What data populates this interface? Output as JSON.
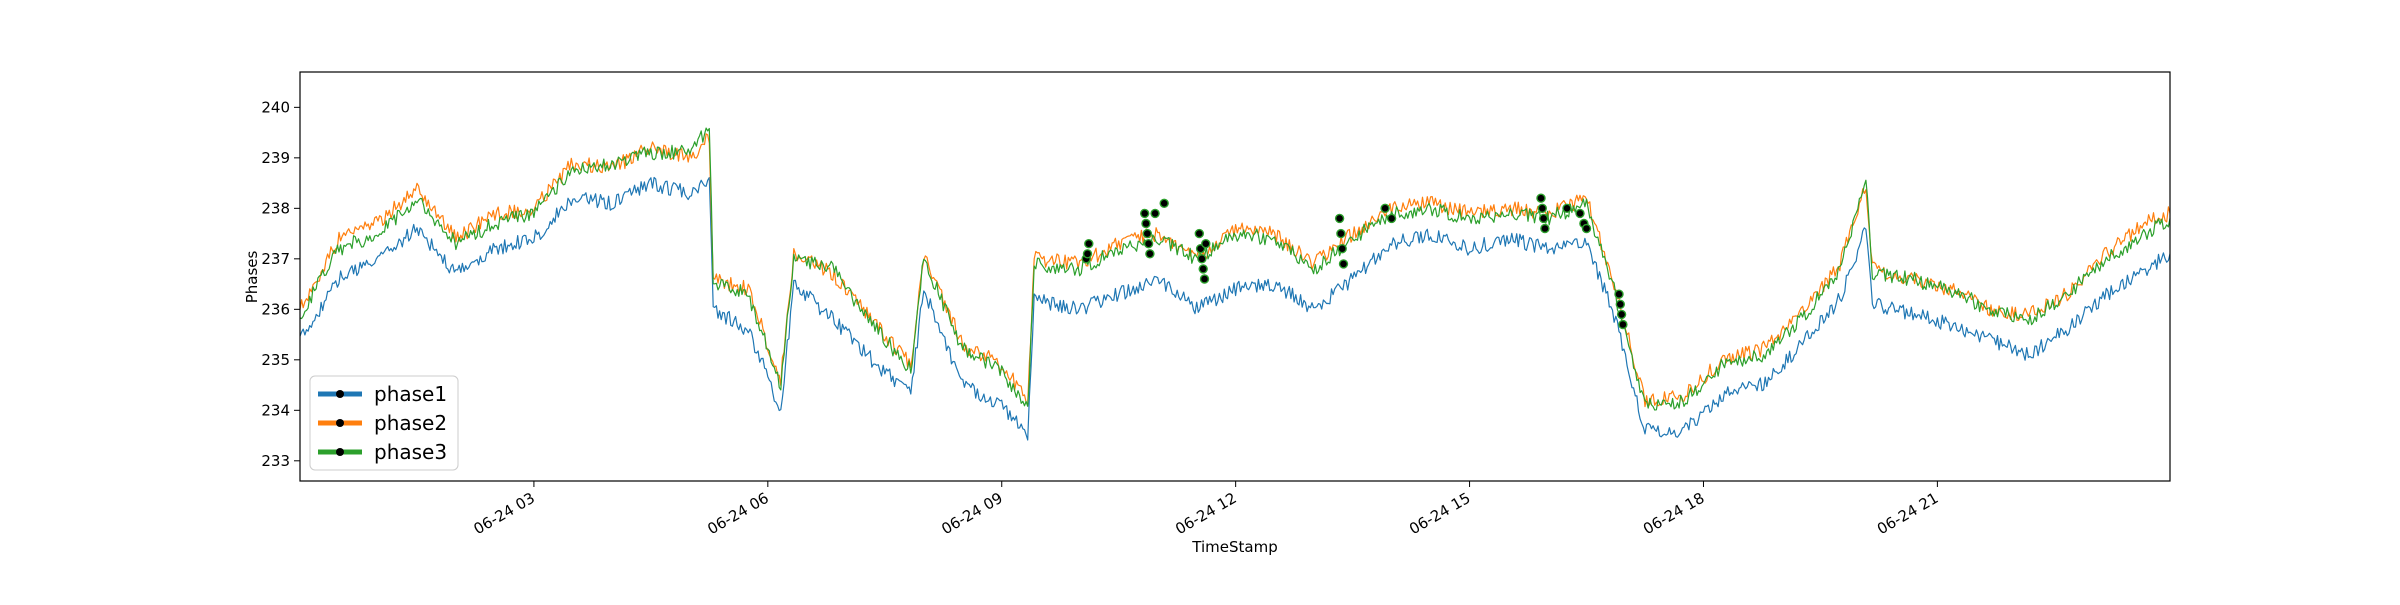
{
  "chart_data": {
    "type": "line",
    "title": "",
    "xlabel": "TimeStamp",
    "ylabel": "Phases",
    "x_domain": [
      "2024-06-24T00:00",
      "2024-06-24T23:59"
    ],
    "ylim": [
      232.6,
      240.7
    ],
    "x_ticks": [
      {
        "x": "2024-06-24T03:00",
        "label": "06-24 03"
      },
      {
        "x": "2024-06-24T06:00",
        "label": "06-24 06"
      },
      {
        "x": "2024-06-24T09:00",
        "label": "06-24 09"
      },
      {
        "x": "2024-06-24T12:00",
        "label": "06-24 12"
      },
      {
        "x": "2024-06-24T15:00",
        "label": "06-24 15"
      },
      {
        "x": "2024-06-24T18:00",
        "label": "06-24 18"
      },
      {
        "x": "2024-06-24T21:00",
        "label": "06-24 21"
      }
    ],
    "y_ticks": [
      233,
      234,
      235,
      236,
      237,
      238,
      239,
      240
    ],
    "grid": false,
    "legend": {
      "placement": "bottom-left",
      "marker": "black dot on colored line"
    },
    "series": [
      {
        "name": "phase1",
        "color": "#1f77b4",
        "points": [
          [
            "2024-06-24T00:00",
            235.4
          ],
          [
            "2024-06-24T00:30",
            236.6
          ],
          [
            "2024-06-24T01:00",
            237.0
          ],
          [
            "2024-06-24T01:30",
            237.6
          ],
          [
            "2024-06-24T02:00",
            236.7
          ],
          [
            "2024-06-24T02:30",
            237.2
          ],
          [
            "2024-06-24T03:00",
            237.4
          ],
          [
            "2024-06-24T03:30",
            238.2
          ],
          [
            "2024-06-24T04:00",
            238.1
          ],
          [
            "2024-06-24T04:30",
            238.5
          ],
          [
            "2024-06-24T05:00",
            238.3
          ],
          [
            "2024-06-24T05:15",
            238.6
          ],
          [
            "2024-06-24T05:18",
            236.0
          ],
          [
            "2024-06-24T05:45",
            235.6
          ],
          [
            "2024-06-24T06:10",
            234.0
          ],
          [
            "2024-06-24T06:20",
            236.5
          ],
          [
            "2024-06-24T06:50",
            235.8
          ],
          [
            "2024-06-24T07:20",
            235.0
          ],
          [
            "2024-06-24T07:50",
            234.3
          ],
          [
            "2024-06-24T08:00",
            236.4
          ],
          [
            "2024-06-24T08:30",
            234.5
          ],
          [
            "2024-06-24T09:00",
            234.1
          ],
          [
            "2024-06-24T09:20",
            233.5
          ],
          [
            "2024-06-24T09:25",
            236.2
          ],
          [
            "2024-06-24T10:00",
            236.0
          ],
          [
            "2024-06-24T10:30",
            236.3
          ],
          [
            "2024-06-24T11:00",
            236.6
          ],
          [
            "2024-06-24T11:30",
            236.0
          ],
          [
            "2024-06-24T12:00",
            236.4
          ],
          [
            "2024-06-24T12:30",
            236.5
          ],
          [
            "2024-06-24T13:00",
            236.0
          ],
          [
            "2024-06-24T13:30",
            236.6
          ],
          [
            "2024-06-24T14:00",
            237.3
          ],
          [
            "2024-06-24T14:30",
            237.5
          ],
          [
            "2024-06-24T15:00",
            237.2
          ],
          [
            "2024-06-24T15:30",
            237.4
          ],
          [
            "2024-06-24T16:00",
            237.2
          ],
          [
            "2024-06-24T16:30",
            237.3
          ],
          [
            "2024-06-24T16:50",
            236.0
          ],
          [
            "2024-06-24T17:15",
            233.6
          ],
          [
            "2024-06-24T17:45",
            233.6
          ],
          [
            "2024-06-24T18:15",
            234.3
          ],
          [
            "2024-06-24T18:45",
            234.5
          ],
          [
            "2024-06-24T19:15",
            235.3
          ],
          [
            "2024-06-24T19:45",
            236.2
          ],
          [
            "2024-06-24T20:05",
            237.6
          ],
          [
            "2024-06-24T20:10",
            236.1
          ],
          [
            "2024-06-24T20:40",
            235.9
          ],
          [
            "2024-06-24T21:10",
            235.7
          ],
          [
            "2024-06-24T21:40",
            235.4
          ],
          [
            "2024-06-24T22:10",
            235.1
          ],
          [
            "2024-06-24T22:40",
            235.6
          ],
          [
            "2024-06-24T23:10",
            236.3
          ],
          [
            "2024-06-24T23:40",
            236.8
          ],
          [
            "2024-06-24T23:59",
            237.1
          ]
        ]
      },
      {
        "name": "phase2",
        "color": "#ff7f0e",
        "points": [
          [
            "2024-06-24T00:00",
            236.0
          ],
          [
            "2024-06-24T00:30",
            237.4
          ],
          [
            "2024-06-24T01:00",
            237.7
          ],
          [
            "2024-06-24T01:30",
            238.4
          ],
          [
            "2024-06-24T02:00",
            237.4
          ],
          [
            "2024-06-24T02:30",
            237.9
          ],
          [
            "2024-06-24T03:00",
            238.0
          ],
          [
            "2024-06-24T03:30",
            238.9
          ],
          [
            "2024-06-24T04:00",
            238.8
          ],
          [
            "2024-06-24T04:30",
            239.2
          ],
          [
            "2024-06-24T05:00",
            239.0
          ],
          [
            "2024-06-24T05:15",
            239.4
          ],
          [
            "2024-06-24T05:18",
            236.6
          ],
          [
            "2024-06-24T05:45",
            236.4
          ],
          [
            "2024-06-24T06:10",
            234.6
          ],
          [
            "2024-06-24T06:20",
            237.1
          ],
          [
            "2024-06-24T06:50",
            236.7
          ],
          [
            "2024-06-24T07:20",
            235.8
          ],
          [
            "2024-06-24T07:50",
            234.9
          ],
          [
            "2024-06-24T08:00",
            237.1
          ],
          [
            "2024-06-24T08:30",
            235.3
          ],
          [
            "2024-06-24T09:00",
            234.9
          ],
          [
            "2024-06-24T09:20",
            234.2
          ],
          [
            "2024-06-24T09:25",
            237.0
          ],
          [
            "2024-06-24T10:00",
            236.9
          ],
          [
            "2024-06-24T10:30",
            237.3
          ],
          [
            "2024-06-24T11:00",
            237.5
          ],
          [
            "2024-06-24T11:30",
            237.0
          ],
          [
            "2024-06-24T12:00",
            237.6
          ],
          [
            "2024-06-24T12:30",
            237.5
          ],
          [
            "2024-06-24T13:00",
            236.9
          ],
          [
            "2024-06-24T13:30",
            237.5
          ],
          [
            "2024-06-24T14:00",
            238.0
          ],
          [
            "2024-06-24T14:30",
            238.1
          ],
          [
            "2024-06-24T15:00",
            237.9
          ],
          [
            "2024-06-24T15:30",
            238.0
          ],
          [
            "2024-06-24T16:00",
            237.9
          ],
          [
            "2024-06-24T16:30",
            238.2
          ],
          [
            "2024-06-24T16:50",
            236.6
          ],
          [
            "2024-06-24T17:15",
            234.2
          ],
          [
            "2024-06-24T17:45",
            234.3
          ],
          [
            "2024-06-24T18:15",
            235.0
          ],
          [
            "2024-06-24T18:45",
            235.2
          ],
          [
            "2024-06-24T19:15",
            235.9
          ],
          [
            "2024-06-24T19:45",
            236.9
          ],
          [
            "2024-06-24T20:05",
            238.5
          ],
          [
            "2024-06-24T20:10",
            236.8
          ],
          [
            "2024-06-24T20:40",
            236.6
          ],
          [
            "2024-06-24T21:10",
            236.4
          ],
          [
            "2024-06-24T21:40",
            236.0
          ],
          [
            "2024-06-24T22:10",
            235.9
          ],
          [
            "2024-06-24T22:40",
            236.3
          ],
          [
            "2024-06-24T23:10",
            237.1
          ],
          [
            "2024-06-24T23:40",
            237.7
          ],
          [
            "2024-06-24T23:59",
            237.9
          ]
        ]
      },
      {
        "name": "phase3",
        "color": "#2ca02c",
        "points": [
          [
            "2024-06-24T00:00",
            235.9
          ],
          [
            "2024-06-24T00:30",
            237.2
          ],
          [
            "2024-06-24T01:00",
            237.5
          ],
          [
            "2024-06-24T01:30",
            238.2
          ],
          [
            "2024-06-24T02:00",
            237.3
          ],
          [
            "2024-06-24T02:30",
            237.7
          ],
          [
            "2024-06-24T03:00",
            237.9
          ],
          [
            "2024-06-24T03:30",
            238.8
          ],
          [
            "2024-06-24T04:00",
            238.9
          ],
          [
            "2024-06-24T04:30",
            239.1
          ],
          [
            "2024-06-24T05:00",
            239.1
          ],
          [
            "2024-06-24T05:15",
            239.6
          ],
          [
            "2024-06-24T05:18",
            236.5
          ],
          [
            "2024-06-24T05:45",
            236.3
          ],
          [
            "2024-06-24T06:10",
            234.5
          ],
          [
            "2024-06-24T06:20",
            237.0
          ],
          [
            "2024-06-24T06:50",
            236.8
          ],
          [
            "2024-06-24T07:20",
            235.7
          ],
          [
            "2024-06-24T07:50",
            234.8
          ],
          [
            "2024-06-24T08:00",
            237.0
          ],
          [
            "2024-06-24T08:30",
            235.2
          ],
          [
            "2024-06-24T09:00",
            234.8
          ],
          [
            "2024-06-24T09:20",
            234.0
          ],
          [
            "2024-06-24T09:25",
            236.9
          ],
          [
            "2024-06-24T10:00",
            236.8
          ],
          [
            "2024-06-24T10:30",
            237.2
          ],
          [
            "2024-06-24T11:00",
            237.4
          ],
          [
            "2024-06-24T11:30",
            237.0
          ],
          [
            "2024-06-24T12:00",
            237.5
          ],
          [
            "2024-06-24T12:30",
            237.4
          ],
          [
            "2024-06-24T13:00",
            236.8
          ],
          [
            "2024-06-24T13:30",
            237.4
          ],
          [
            "2024-06-24T14:00",
            237.9
          ],
          [
            "2024-06-24T14:30",
            238.0
          ],
          [
            "2024-06-24T15:00",
            237.8
          ],
          [
            "2024-06-24T15:30",
            237.9
          ],
          [
            "2024-06-24T16:00",
            237.8
          ],
          [
            "2024-06-24T16:30",
            238.1
          ],
          [
            "2024-06-24T16:50",
            236.5
          ],
          [
            "2024-06-24T17:15",
            234.1
          ],
          [
            "2024-06-24T17:45",
            234.2
          ],
          [
            "2024-06-24T18:15",
            234.9
          ],
          [
            "2024-06-24T18:45",
            235.1
          ],
          [
            "2024-06-24T19:15",
            235.8
          ],
          [
            "2024-06-24T19:45",
            236.8
          ],
          [
            "2024-06-24T20:05",
            238.6
          ],
          [
            "2024-06-24T20:10",
            236.7
          ],
          [
            "2024-06-24T20:40",
            236.6
          ],
          [
            "2024-06-24T21:10",
            236.4
          ],
          [
            "2024-06-24T21:40",
            236.0
          ],
          [
            "2024-06-24T22:10",
            235.8
          ],
          [
            "2024-06-24T22:40",
            236.3
          ],
          [
            "2024-06-24T23:10",
            237.0
          ],
          [
            "2024-06-24T23:40",
            237.5
          ],
          [
            "2024-06-24T23:59",
            237.8
          ]
        ]
      }
    ],
    "markers": {
      "style": "black dot with green outline",
      "points": [
        [
          "2024-06-24T10:05",
          237.0
        ],
        [
          "2024-06-24T10:07",
          237.3
        ],
        [
          "2024-06-24T10:06",
          237.1
        ],
        [
          "2024-06-24T10:50",
          237.9
        ],
        [
          "2024-06-24T10:51",
          237.7
        ],
        [
          "2024-06-24T10:52",
          237.5
        ],
        [
          "2024-06-24T10:53",
          237.3
        ],
        [
          "2024-06-24T10:54",
          237.1
        ],
        [
          "2024-06-24T10:58",
          237.9
        ],
        [
          "2024-06-24T11:05",
          238.1
        ],
        [
          "2024-06-24T11:32",
          237.5
        ],
        [
          "2024-06-24T11:33",
          237.2
        ],
        [
          "2024-06-24T11:34",
          237.0
        ],
        [
          "2024-06-24T11:35",
          236.8
        ],
        [
          "2024-06-24T11:36",
          236.6
        ],
        [
          "2024-06-24T11:37",
          237.3
        ],
        [
          "2024-06-24T13:20",
          237.8
        ],
        [
          "2024-06-24T13:21",
          237.5
        ],
        [
          "2024-06-24T13:22",
          237.2
        ],
        [
          "2024-06-24T13:23",
          236.9
        ],
        [
          "2024-06-24T13:55",
          238.0
        ],
        [
          "2024-06-24T14:00",
          237.8
        ],
        [
          "2024-06-24T15:55",
          238.2
        ],
        [
          "2024-06-24T15:56",
          238.0
        ],
        [
          "2024-06-24T15:57",
          237.8
        ],
        [
          "2024-06-24T15:58",
          237.6
        ],
        [
          "2024-06-24T16:15",
          238.0
        ],
        [
          "2024-06-24T16:25",
          237.9
        ],
        [
          "2024-06-24T16:28",
          237.7
        ],
        [
          "2024-06-24T16:30",
          237.6
        ],
        [
          "2024-06-24T16:55",
          236.3
        ],
        [
          "2024-06-24T16:56",
          236.1
        ],
        [
          "2024-06-24T16:57",
          235.9
        ],
        [
          "2024-06-24T16:58",
          235.7
        ]
      ]
    }
  }
}
